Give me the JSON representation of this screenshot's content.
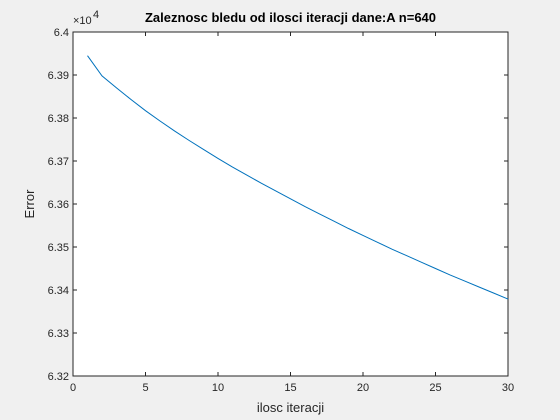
{
  "chart_data": {
    "type": "line",
    "title": "Zaleznosc bledu od ilosci iteracji dane:A n=640",
    "xlabel": "ilosc iteracji",
    "ylabel": "Error",
    "xlim": [
      0,
      30
    ],
    "ylim": [
      63200,
      64000
    ],
    "xticks": [
      0,
      5,
      10,
      15,
      20,
      25,
      30
    ],
    "yticks": [
      63200,
      63300,
      63400,
      63500,
      63600,
      63700,
      63800,
      63900,
      64000
    ],
    "ytick_labels": [
      "6.32",
      "6.33",
      "6.34",
      "6.35",
      "6.36",
      "6.37",
      "6.38",
      "6.39",
      "6.4"
    ],
    "y_exponent_label": "×10",
    "y_exponent_power": "4",
    "grid": false,
    "colors": {
      "line": "#0072BD",
      "axis": "#262626",
      "plot_bg": "#ffffff",
      "fig_bg": "#f0f0f0"
    },
    "series": [
      {
        "x": [
          1,
          2,
          3,
          4,
          5,
          6,
          7,
          8,
          9,
          10,
          11,
          12,
          13,
          14,
          15,
          16,
          17,
          18,
          19,
          20,
          21,
          22,
          23,
          24,
          25,
          26,
          27,
          28,
          29,
          30
        ],
        "values": [
          63945,
          63898,
          63870,
          63843,
          63817,
          63793,
          63770,
          63748,
          63727,
          63706,
          63686,
          63667,
          63648,
          63630,
          63612,
          63594,
          63577,
          63560,
          63543,
          63527,
          63511,
          63495,
          63480,
          63465,
          63450,
          63435,
          63421,
          63407,
          63393,
          63379
        ]
      }
    ]
  }
}
